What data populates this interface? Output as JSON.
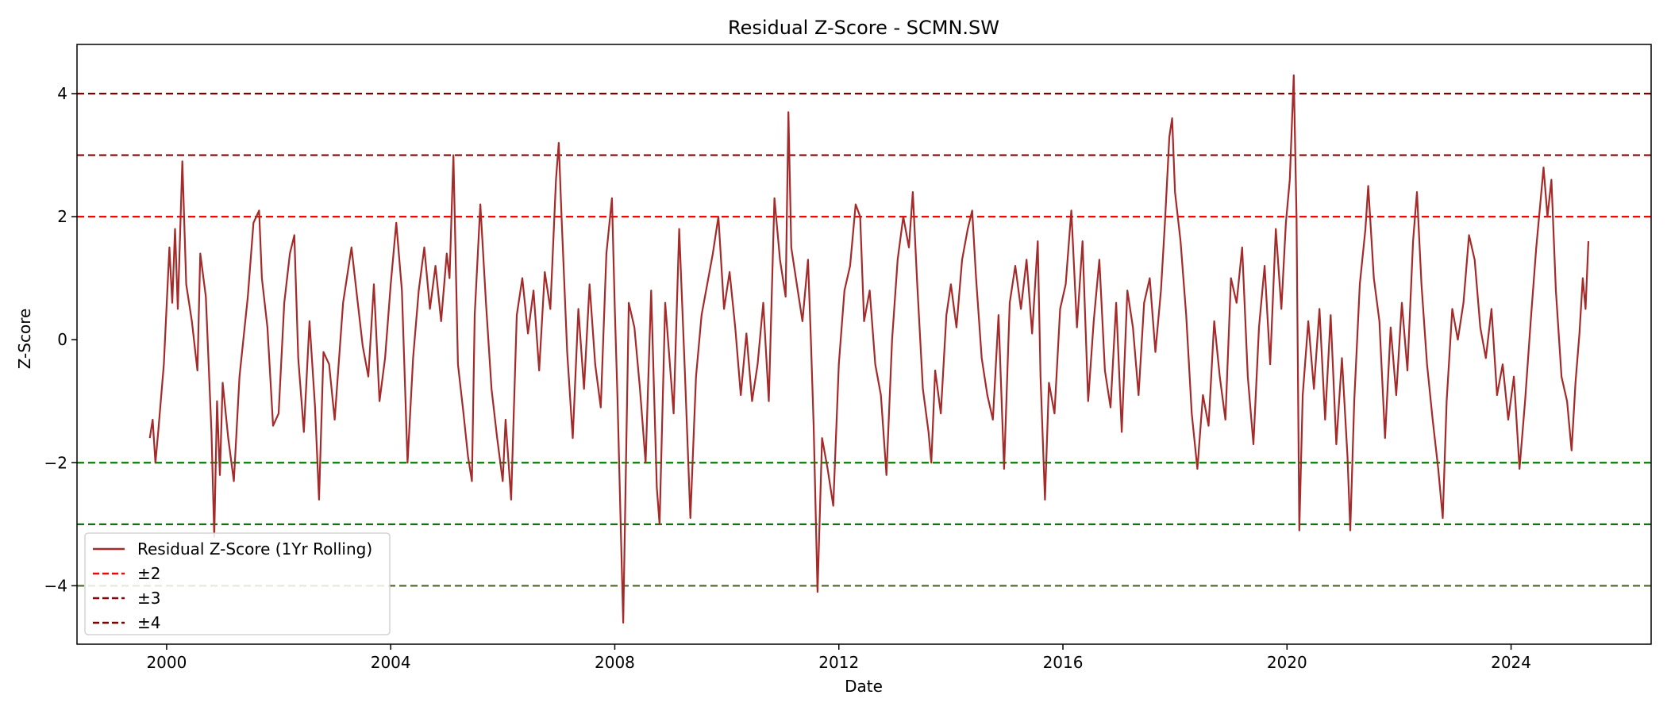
{
  "chart_data": {
    "type": "line",
    "title": "Residual Z-Score - SCMN.SW",
    "xlabel": "Date",
    "ylabel": "Z-Score",
    "xlim": [
      1998.4,
      2026.5
    ],
    "ylim": [
      -4.95,
      4.8
    ],
    "x_ticks": [
      2000,
      2004,
      2008,
      2012,
      2016,
      2020,
      2024
    ],
    "x_tick_labels": [
      "2000",
      "2004",
      "2008",
      "2012",
      "2016",
      "2020",
      "2024"
    ],
    "y_ticks": [
      -4,
      -2,
      0,
      2,
      4
    ],
    "y_tick_labels": [
      "−4",
      "−2",
      "0",
      "2",
      "4"
    ],
    "grid": false,
    "legend_position": "lower-left",
    "legend": [
      {
        "label": "Residual Z-Score (1Yr Rolling)",
        "color": "#a52a2a",
        "style": "solid"
      },
      {
        "label": "±2",
        "color": "#ff0000",
        "style": "dashed"
      },
      {
        "label": "±3",
        "color": "#8b0000",
        "style": "dashed"
      },
      {
        "label": "±4",
        "color": "#800000",
        "style": "dashed"
      }
    ],
    "threshold_lines": [
      {
        "y": 4,
        "color": "#800000"
      },
      {
        "y": 3,
        "color": "#8b0000"
      },
      {
        "y": 2,
        "color": "#ff0000"
      },
      {
        "y": -2,
        "color": "#008000"
      },
      {
        "y": -3,
        "color": "#006400"
      },
      {
        "y": -4,
        "color": "#556b2f"
      }
    ],
    "series": [
      {
        "name": "Residual Z-Score (1Yr Rolling)",
        "color": "#a52a2a",
        "points": [
          [
            1999.7,
            -1.6
          ],
          [
            1999.75,
            -1.3
          ],
          [
            1999.8,
            -2.0
          ],
          [
            1999.85,
            -1.5
          ],
          [
            1999.95,
            -0.4
          ],
          [
            2000.05,
            1.5
          ],
          [
            2000.1,
            0.6
          ],
          [
            2000.15,
            1.8
          ],
          [
            2000.2,
            0.5
          ],
          [
            2000.28,
            2.9
          ],
          [
            2000.35,
            0.9
          ],
          [
            2000.45,
            0.3
          ],
          [
            2000.55,
            -0.5
          ],
          [
            2000.6,
            1.4
          ],
          [
            2000.7,
            0.7
          ],
          [
            2000.8,
            -1.5
          ],
          [
            2000.85,
            -3.2
          ],
          [
            2000.9,
            -1.0
          ],
          [
            2000.95,
            -2.2
          ],
          [
            2001.0,
            -0.7
          ],
          [
            2001.1,
            -1.6
          ],
          [
            2001.2,
            -2.3
          ],
          [
            2001.3,
            -0.6
          ],
          [
            2001.45,
            0.7
          ],
          [
            2001.55,
            1.9
          ],
          [
            2001.65,
            2.1
          ],
          [
            2001.7,
            1.0
          ],
          [
            2001.8,
            0.2
          ],
          [
            2001.9,
            -1.4
          ],
          [
            2002.0,
            -1.2
          ],
          [
            2002.1,
            0.6
          ],
          [
            2002.2,
            1.4
          ],
          [
            2002.28,
            1.7
          ],
          [
            2002.35,
            -0.3
          ],
          [
            2002.45,
            -1.5
          ],
          [
            2002.55,
            0.3
          ],
          [
            2002.65,
            -1.1
          ],
          [
            2002.72,
            -2.6
          ],
          [
            2002.8,
            -0.2
          ],
          [
            2002.9,
            -0.4
          ],
          [
            2003.0,
            -1.3
          ],
          [
            2003.15,
            0.6
          ],
          [
            2003.3,
            1.5
          ],
          [
            2003.4,
            0.7
          ],
          [
            2003.5,
            -0.1
          ],
          [
            2003.6,
            -0.6
          ],
          [
            2003.7,
            0.9
          ],
          [
            2003.8,
            -1.0
          ],
          [
            2003.9,
            -0.3
          ],
          [
            2004.0,
            0.9
          ],
          [
            2004.1,
            1.9
          ],
          [
            2004.2,
            0.8
          ],
          [
            2004.3,
            -2.0
          ],
          [
            2004.4,
            -0.3
          ],
          [
            2004.5,
            0.8
          ],
          [
            2004.6,
            1.5
          ],
          [
            2004.7,
            0.5
          ],
          [
            2004.8,
            1.2
          ],
          [
            2004.9,
            0.3
          ],
          [
            2005.0,
            1.4
          ],
          [
            2005.05,
            1.0
          ],
          [
            2005.12,
            3.0
          ],
          [
            2005.2,
            -0.4
          ],
          [
            2005.3,
            -1.2
          ],
          [
            2005.38,
            -1.9
          ],
          [
            2005.45,
            -2.3
          ],
          [
            2005.5,
            0.4
          ],
          [
            2005.6,
            2.2
          ],
          [
            2005.7,
            0.6
          ],
          [
            2005.8,
            -0.8
          ],
          [
            2005.9,
            -1.6
          ],
          [
            2006.0,
            -2.3
          ],
          [
            2006.05,
            -1.3
          ],
          [
            2006.15,
            -2.6
          ],
          [
            2006.25,
            0.4
          ],
          [
            2006.35,
            1.0
          ],
          [
            2006.45,
            0.1
          ],
          [
            2006.55,
            0.8
          ],
          [
            2006.65,
            -0.5
          ],
          [
            2006.75,
            1.1
          ],
          [
            2006.85,
            0.5
          ],
          [
            2006.95,
            2.6
          ],
          [
            2007.0,
            3.2
          ],
          [
            2007.05,
            2.0
          ],
          [
            2007.15,
            -0.2
          ],
          [
            2007.25,
            -1.6
          ],
          [
            2007.35,
            0.5
          ],
          [
            2007.45,
            -0.8
          ],
          [
            2007.55,
            0.9
          ],
          [
            2007.65,
            -0.4
          ],
          [
            2007.75,
            -1.1
          ],
          [
            2007.85,
            1.4
          ],
          [
            2007.95,
            2.3
          ],
          [
            2008.0,
            0.5
          ],
          [
            2008.05,
            -1.0
          ],
          [
            2008.1,
            -2.8
          ],
          [
            2008.15,
            -4.6
          ],
          [
            2008.2,
            -2.0
          ],
          [
            2008.25,
            0.6
          ],
          [
            2008.35,
            0.2
          ],
          [
            2008.45,
            -0.8
          ],
          [
            2008.55,
            -2.0
          ],
          [
            2008.65,
            0.8
          ],
          [
            2008.75,
            -2.4
          ],
          [
            2008.8,
            -3.0
          ],
          [
            2008.9,
            0.6
          ],
          [
            2009.05,
            -1.2
          ],
          [
            2009.15,
            1.8
          ],
          [
            2009.25,
            -0.5
          ],
          [
            2009.35,
            -2.9
          ],
          [
            2009.45,
            -0.6
          ],
          [
            2009.55,
            0.4
          ],
          [
            2009.65,
            0.9
          ],
          [
            2009.75,
            1.4
          ],
          [
            2009.85,
            2.0
          ],
          [
            2009.95,
            0.5
          ],
          [
            2010.05,
            1.1
          ],
          [
            2010.15,
            0.2
          ],
          [
            2010.25,
            -0.9
          ],
          [
            2010.35,
            0.1
          ],
          [
            2010.45,
            -1.0
          ],
          [
            2010.55,
            -0.4
          ],
          [
            2010.65,
            0.6
          ],
          [
            2010.75,
            -1.0
          ],
          [
            2010.85,
            2.3
          ],
          [
            2010.95,
            1.3
          ],
          [
            2011.05,
            0.7
          ],
          [
            2011.1,
            3.7
          ],
          [
            2011.15,
            1.5
          ],
          [
            2011.25,
            0.9
          ],
          [
            2011.35,
            0.3
          ],
          [
            2011.45,
            1.3
          ],
          [
            2011.5,
            0.0
          ],
          [
            2011.55,
            -1.4
          ],
          [
            2011.62,
            -4.1
          ],
          [
            2011.7,
            -1.6
          ],
          [
            2011.8,
            -2.1
          ],
          [
            2011.9,
            -2.7
          ],
          [
            2012.0,
            -0.4
          ],
          [
            2012.1,
            0.8
          ],
          [
            2012.2,
            1.2
          ],
          [
            2012.3,
            2.2
          ],
          [
            2012.38,
            2.0
          ],
          [
            2012.45,
            0.3
          ],
          [
            2012.55,
            0.8
          ],
          [
            2012.65,
            -0.4
          ],
          [
            2012.75,
            -0.9
          ],
          [
            2012.85,
            -2.2
          ],
          [
            2012.95,
            0.0
          ],
          [
            2013.05,
            1.3
          ],
          [
            2013.15,
            2.0
          ],
          [
            2013.25,
            1.5
          ],
          [
            2013.32,
            2.4
          ],
          [
            2013.4,
            0.9
          ],
          [
            2013.5,
            -0.8
          ],
          [
            2013.6,
            -1.5
          ],
          [
            2013.65,
            -2.0
          ],
          [
            2013.72,
            -0.5
          ],
          [
            2013.82,
            -1.2
          ],
          [
            2013.92,
            0.4
          ],
          [
            2014.0,
            0.9
          ],
          [
            2014.1,
            0.2
          ],
          [
            2014.2,
            1.3
          ],
          [
            2014.3,
            1.8
          ],
          [
            2014.38,
            2.1
          ],
          [
            2014.45,
            1.0
          ],
          [
            2014.55,
            -0.3
          ],
          [
            2014.65,
            -0.9
          ],
          [
            2014.75,
            -1.3
          ],
          [
            2014.85,
            0.4
          ],
          [
            2014.95,
            -2.1
          ],
          [
            2015.05,
            0.6
          ],
          [
            2015.15,
            1.2
          ],
          [
            2015.25,
            0.5
          ],
          [
            2015.35,
            1.3
          ],
          [
            2015.45,
            0.1
          ],
          [
            2015.55,
            1.6
          ],
          [
            2015.6,
            -0.6
          ],
          [
            2015.68,
            -2.6
          ],
          [
            2015.75,
            -0.7
          ],
          [
            2015.85,
            -1.2
          ],
          [
            2015.95,
            0.5
          ],
          [
            2016.05,
            0.9
          ],
          [
            2016.15,
            2.1
          ],
          [
            2016.25,
            0.2
          ],
          [
            2016.35,
            1.6
          ],
          [
            2016.45,
            -1.0
          ],
          [
            2016.55,
            0.3
          ],
          [
            2016.65,
            1.3
          ],
          [
            2016.75,
            -0.5
          ],
          [
            2016.85,
            -1.1
          ],
          [
            2016.95,
            0.6
          ],
          [
            2017.05,
            -1.5
          ],
          [
            2017.15,
            0.8
          ],
          [
            2017.25,
            0.2
          ],
          [
            2017.35,
            -0.9
          ],
          [
            2017.45,
            0.6
          ],
          [
            2017.55,
            1.0
          ],
          [
            2017.65,
            -0.2
          ],
          [
            2017.75,
            0.8
          ],
          [
            2017.82,
            1.9
          ],
          [
            2017.9,
            3.3
          ],
          [
            2017.95,
            3.6
          ],
          [
            2018.0,
            2.4
          ],
          [
            2018.1,
            1.6
          ],
          [
            2018.2,
            0.4
          ],
          [
            2018.3,
            -1.2
          ],
          [
            2018.4,
            -2.1
          ],
          [
            2018.5,
            -0.9
          ],
          [
            2018.6,
            -1.4
          ],
          [
            2018.7,
            0.3
          ],
          [
            2018.8,
            -0.6
          ],
          [
            2018.9,
            -1.3
          ],
          [
            2019.0,
            1.0
          ],
          [
            2019.1,
            0.6
          ],
          [
            2019.2,
            1.5
          ],
          [
            2019.3,
            -0.6
          ],
          [
            2019.4,
            -1.7
          ],
          [
            2019.5,
            0.2
          ],
          [
            2019.6,
            1.2
          ],
          [
            2019.7,
            -0.4
          ],
          [
            2019.8,
            1.8
          ],
          [
            2019.9,
            0.5
          ],
          [
            2019.98,
            1.9
          ],
          [
            2020.05,
            2.6
          ],
          [
            2020.12,
            4.3
          ],
          [
            2020.17,
            2.0
          ],
          [
            2020.22,
            -3.1
          ],
          [
            2020.28,
            -0.9
          ],
          [
            2020.38,
            0.3
          ],
          [
            2020.48,
            -0.8
          ],
          [
            2020.58,
            0.5
          ],
          [
            2020.68,
            -1.3
          ],
          [
            2020.78,
            0.4
          ],
          [
            2020.88,
            -1.7
          ],
          [
            2020.98,
            -0.3
          ],
          [
            2021.08,
            -1.9
          ],
          [
            2021.13,
            -3.1
          ],
          [
            2021.2,
            -1.0
          ],
          [
            2021.3,
            0.9
          ],
          [
            2021.4,
            1.8
          ],
          [
            2021.45,
            2.5
          ],
          [
            2021.55,
            1.0
          ],
          [
            2021.65,
            0.3
          ],
          [
            2021.75,
            -1.6
          ],
          [
            2021.85,
            0.2
          ],
          [
            2021.95,
            -0.9
          ],
          [
            2022.05,
            0.6
          ],
          [
            2022.15,
            -0.5
          ],
          [
            2022.25,
            1.6
          ],
          [
            2022.32,
            2.4
          ],
          [
            2022.4,
            0.9
          ],
          [
            2022.5,
            -0.4
          ],
          [
            2022.6,
            -1.3
          ],
          [
            2022.7,
            -2.1
          ],
          [
            2022.78,
            -2.9
          ],
          [
            2022.85,
            -1.0
          ],
          [
            2022.95,
            0.5
          ],
          [
            2023.05,
            0.0
          ],
          [
            2023.15,
            0.6
          ],
          [
            2023.25,
            1.7
          ],
          [
            2023.35,
            1.3
          ],
          [
            2023.45,
            0.2
          ],
          [
            2023.55,
            -0.3
          ],
          [
            2023.65,
            0.5
          ],
          [
            2023.75,
            -0.9
          ],
          [
            2023.85,
            -0.4
          ],
          [
            2023.95,
            -1.3
          ],
          [
            2024.05,
            -0.6
          ],
          [
            2024.15,
            -2.1
          ],
          [
            2024.25,
            -1.0
          ],
          [
            2024.35,
            0.3
          ],
          [
            2024.45,
            1.5
          ],
          [
            2024.52,
            2.2
          ],
          [
            2024.58,
            2.8
          ],
          [
            2024.65,
            2.0
          ],
          [
            2024.72,
            2.6
          ],
          [
            2024.8,
            0.8
          ],
          [
            2024.9,
            -0.6
          ],
          [
            2025.0,
            -1.0
          ],
          [
            2025.08,
            -1.8
          ],
          [
            2025.15,
            -0.7
          ],
          [
            2025.22,
            0.1
          ],
          [
            2025.28,
            1.0
          ],
          [
            2025.33,
            0.5
          ],
          [
            2025.38,
            1.6
          ]
        ]
      }
    ]
  }
}
